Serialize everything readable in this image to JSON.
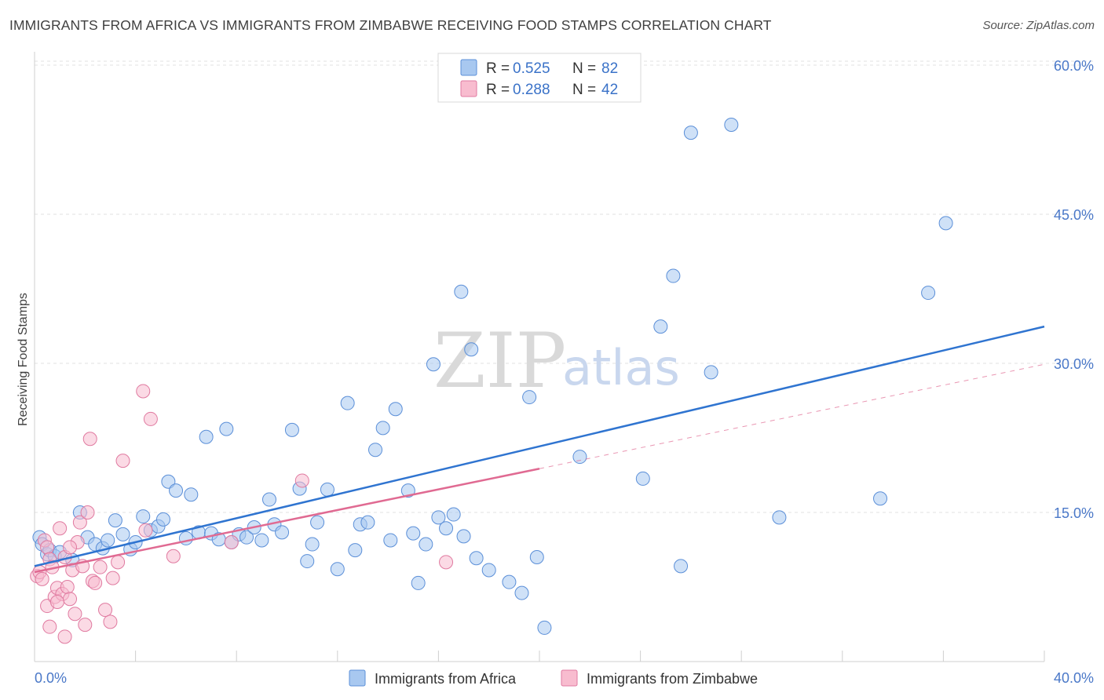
{
  "chart_data": {
    "type": "scatter",
    "title": "IMMIGRANTS FROM AFRICA VS IMMIGRANTS FROM ZIMBABWE RECEIVING FOOD STAMPS CORRELATION CHART",
    "source": "Source: ZipAtlas.com",
    "xlabel": "",
    "ylabel": "Receiving Food Stamps",
    "xlim": [
      0,
      40
    ],
    "ylim": [
      0,
      60
    ],
    "x_tick_labels": [
      "0.0%",
      "40.0%"
    ],
    "y_ticks": [
      15,
      30,
      45,
      60
    ],
    "y_tick_labels": [
      "15.0%",
      "30.0%",
      "45.0%",
      "60.0%"
    ],
    "grid": true,
    "watermark": {
      "zip": "ZIP",
      "atlas": "atlas"
    },
    "legend": [
      {
        "r_label": "R =",
        "r_value": "0.525",
        "n_label": "N =",
        "n_value": "82",
        "color": "#a8c8f0",
        "stroke": "#5b8fd8"
      },
      {
        "r_label": "R =",
        "r_value": "0.288",
        "n_label": "N =",
        "n_value": "42",
        "color": "#f8bccf",
        "stroke": "#e07aa0"
      }
    ],
    "series": [
      {
        "name": "Immigrants from Africa",
        "color": "#a8c8f0",
        "stroke": "#5b8fd8",
        "trend": {
          "x0": 0,
          "y0": 9.6,
          "x1": 40,
          "y1": 33.7,
          "color": "#2f74d0"
        },
        "points": [
          [
            0.2,
            12.5
          ],
          [
            0.3,
            11.8
          ],
          [
            0.5,
            10.8
          ],
          [
            0.6,
            11.2
          ],
          [
            0.8,
            10.6
          ],
          [
            1.0,
            11.0
          ],
          [
            1.5,
            10.2
          ],
          [
            1.8,
            15.0
          ],
          [
            2.1,
            12.5
          ],
          [
            2.4,
            11.8
          ],
          [
            2.7,
            11.4
          ],
          [
            2.9,
            12.2
          ],
          [
            3.2,
            14.2
          ],
          [
            3.5,
            12.8
          ],
          [
            3.8,
            11.3
          ],
          [
            4.0,
            12.0
          ],
          [
            4.3,
            14.6
          ],
          [
            4.6,
            13.2
          ],
          [
            4.9,
            13.6
          ],
          [
            5.1,
            14.3
          ],
          [
            5.3,
            18.1
          ],
          [
            5.6,
            17.2
          ],
          [
            6.0,
            12.4
          ],
          [
            6.2,
            16.8
          ],
          [
            6.5,
            13.0
          ],
          [
            6.8,
            22.6
          ],
          [
            7.0,
            12.9
          ],
          [
            7.3,
            12.3
          ],
          [
            7.6,
            23.4
          ],
          [
            7.8,
            12.0
          ],
          [
            8.1,
            12.8
          ],
          [
            8.4,
            12.5
          ],
          [
            8.7,
            13.5
          ],
          [
            9.0,
            12.2
          ],
          [
            9.3,
            16.3
          ],
          [
            9.5,
            13.8
          ],
          [
            9.8,
            13.0
          ],
          [
            10.2,
            23.3
          ],
          [
            10.5,
            17.4
          ],
          [
            10.8,
            10.1
          ],
          [
            11.0,
            11.8
          ],
          [
            11.2,
            14.0
          ],
          [
            11.6,
            17.3
          ],
          [
            12.0,
            9.3
          ],
          [
            12.4,
            26.0
          ],
          [
            12.7,
            11.2
          ],
          [
            12.9,
            13.8
          ],
          [
            13.2,
            14.0
          ],
          [
            13.5,
            21.3
          ],
          [
            13.8,
            23.5
          ],
          [
            14.1,
            12.2
          ],
          [
            14.3,
            25.4
          ],
          [
            14.8,
            17.2
          ],
          [
            15.0,
            12.9
          ],
          [
            15.2,
            7.9
          ],
          [
            15.5,
            11.8
          ],
          [
            15.8,
            29.9
          ],
          [
            16.0,
            14.5
          ],
          [
            16.3,
            13.4
          ],
          [
            16.6,
            14.8
          ],
          [
            16.9,
            37.2
          ],
          [
            17.0,
            12.6
          ],
          [
            17.3,
            31.4
          ],
          [
            17.5,
            10.4
          ],
          [
            18.0,
            9.2
          ],
          [
            18.8,
            8.0
          ],
          [
            19.3,
            6.9
          ],
          [
            19.6,
            26.6
          ],
          [
            19.9,
            10.5
          ],
          [
            20.2,
            3.4
          ],
          [
            21.6,
            20.6
          ],
          [
            24.1,
            18.4
          ],
          [
            24.8,
            33.7
          ],
          [
            25.3,
            38.8
          ],
          [
            25.6,
            9.6
          ],
          [
            26.0,
            53.2
          ],
          [
            26.8,
            29.1
          ],
          [
            27.6,
            54.0
          ],
          [
            29.5,
            14.5
          ],
          [
            33.5,
            16.4
          ],
          [
            35.4,
            37.1
          ],
          [
            36.1,
            44.1
          ]
        ]
      },
      {
        "name": "Immigrants from Zimbabwe",
        "color": "#f8bccf",
        "stroke": "#e07aa0",
        "trend": {
          "x0": 0,
          "y0": 9.0,
          "x1": 20,
          "y1": 19.4,
          "dash_x1": 40,
          "dash_y1": 29.9,
          "color": "#e06a92"
        },
        "points": [
          [
            0.1,
            8.6
          ],
          [
            0.2,
            9.0
          ],
          [
            0.3,
            8.3
          ],
          [
            0.4,
            12.2
          ],
          [
            0.5,
            11.5
          ],
          [
            0.6,
            10.3
          ],
          [
            0.7,
            9.5
          ],
          [
            0.5,
            5.6
          ],
          [
            0.6,
            3.5
          ],
          [
            0.8,
            6.5
          ],
          [
            0.9,
            7.4
          ],
          [
            1.0,
            13.4
          ],
          [
            1.1,
            6.8
          ],
          [
            1.2,
            10.5
          ],
          [
            1.3,
            7.5
          ],
          [
            1.4,
            6.3
          ],
          [
            1.5,
            9.2
          ],
          [
            1.6,
            4.8
          ],
          [
            1.7,
            12.0
          ],
          [
            1.8,
            14.0
          ],
          [
            1.9,
            9.6
          ],
          [
            2.0,
            3.7
          ],
          [
            2.1,
            15.0
          ],
          [
            2.2,
            22.4
          ],
          [
            2.3,
            8.1
          ],
          [
            2.4,
            7.9
          ],
          [
            2.6,
            9.5
          ],
          [
            2.8,
            5.2
          ],
          [
            3.0,
            4.0
          ],
          [
            3.1,
            8.4
          ],
          [
            3.3,
            10.0
          ],
          [
            3.5,
            20.2
          ],
          [
            4.3,
            27.2
          ],
          [
            4.4,
            13.2
          ],
          [
            4.6,
            24.4
          ],
          [
            5.5,
            10.6
          ],
          [
            7.8,
            12.0
          ],
          [
            10.6,
            18.2
          ],
          [
            16.3,
            10.0
          ],
          [
            1.2,
            2.5
          ],
          [
            0.9,
            6.0
          ],
          [
            1.4,
            11.5
          ]
        ]
      }
    ]
  }
}
